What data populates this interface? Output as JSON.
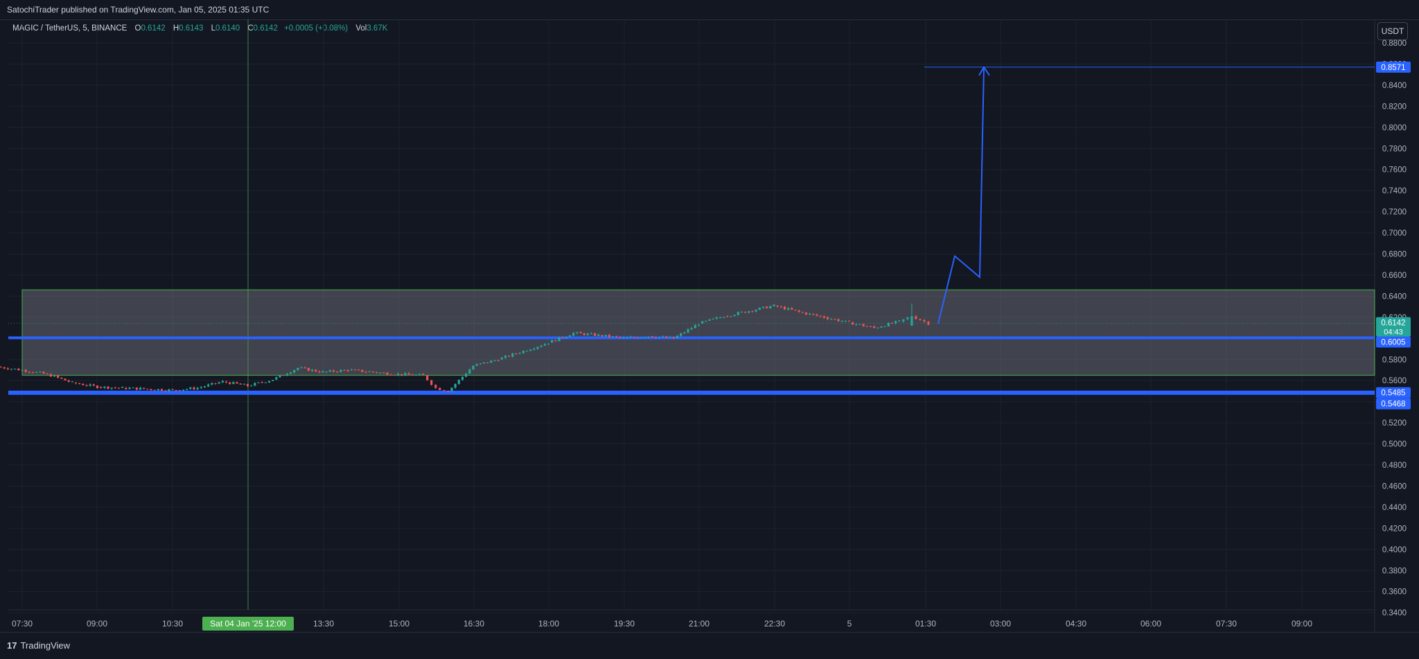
{
  "header": {
    "published_by": "SatochiTrader published on TradingView.com, Jan 05, 2025 01:35 UTC"
  },
  "legend": {
    "symbol": "MAGIC / TetherUS, 5, BINANCE",
    "open_label": "O",
    "open": "0.6142",
    "high_label": "H",
    "high": "0.6143",
    "low_label": "L",
    "low": "0.6140",
    "close_label": "C",
    "close": "0.6142",
    "change": "+0.0005 (+0.08%)",
    "vol_label": "Vol",
    "vol": "3.67K"
  },
  "currency_button": "USDT",
  "brand": {
    "name": "TradingView",
    "mark": "17"
  },
  "colors": {
    "bg": "#131722",
    "up": "#26a69a",
    "down": "#ef5350",
    "blue": "#2962ff",
    "zone": "#4caf50"
  },
  "price_axis": {
    "ticks": [
      "0.8800",
      "0.8600",
      "0.8400",
      "0.8200",
      "0.8000",
      "0.7800",
      "0.7600",
      "0.7400",
      "0.7200",
      "0.7000",
      "0.6800",
      "0.6600",
      "0.6400",
      "0.6200",
      "0.6000",
      "0.5800",
      "0.5600",
      "0.5400",
      "0.5200",
      "0.5000",
      "0.4800",
      "0.4600",
      "0.4400",
      "0.4200",
      "0.4000",
      "0.3800",
      "0.3600",
      "0.3400"
    ],
    "labels": {
      "target": "0.8571",
      "current_price": "0.6142",
      "countdown": "04:43",
      "support_upper": "0.6005",
      "support_lower_a": "0.5485",
      "support_lower_b": "0.5468"
    }
  },
  "time_axis": {
    "ticks": [
      "07:30",
      "09:00",
      "10:30",
      "13:30",
      "15:00",
      "16:30",
      "18:00",
      "19:30",
      "21:00",
      "22:30",
      "5",
      "01:30",
      "03:00",
      "04:30",
      "06:00",
      "07:30",
      "09:00"
    ],
    "crosshair_label": "Sat 04 Jan '25   12:00"
  },
  "chart_data": {
    "type": "candlestick",
    "symbol": "MAGIC/USDT",
    "interval": "5",
    "ylim": [
      0.34,
      0.88
    ],
    "x_range": [
      "Jan 04 07:00",
      "Jan 05 10:30"
    ],
    "close_series_approx": [
      [
        "07:00",
        0.573
      ],
      [
        "07:30",
        0.57
      ],
      [
        "08:00",
        0.566
      ],
      [
        "08:30",
        0.558
      ],
      [
        "09:00",
        0.554
      ],
      [
        "09:30",
        0.553
      ],
      [
        "10:00",
        0.552
      ],
      [
        "10:30",
        0.551
      ],
      [
        "11:00",
        0.553
      ],
      [
        "11:30",
        0.559
      ],
      [
        "12:00",
        0.555
      ],
      [
        "12:30",
        0.561
      ],
      [
        "13:00",
        0.572
      ],
      [
        "13:30",
        0.568
      ],
      [
        "14:00",
        0.57
      ],
      [
        "14:30",
        0.568
      ],
      [
        "15:00",
        0.566
      ],
      [
        "15:30",
        0.565
      ],
      [
        "15:45",
        0.553
      ],
      [
        "16:00",
        0.55
      ],
      [
        "16:30",
        0.574
      ],
      [
        "17:00",
        0.58
      ],
      [
        "17:30",
        0.588
      ],
      [
        "18:00",
        0.596
      ],
      [
        "18:30",
        0.605
      ],
      [
        "19:00",
        0.603
      ],
      [
        "19:30",
        0.6
      ],
      [
        "20:00",
        0.602
      ],
      [
        "20:30",
        0.6
      ],
      [
        "21:00",
        0.614
      ],
      [
        "21:30",
        0.621
      ],
      [
        "22:00",
        0.626
      ],
      [
        "22:30",
        0.631
      ],
      [
        "23:00",
        0.625
      ],
      [
        "23:30",
        0.62
      ],
      [
        "00:00",
        0.615
      ],
      [
        "00:30",
        0.61
      ],
      [
        "01:00",
        0.616
      ],
      [
        "01:15",
        0.621
      ],
      [
        "01:35",
        0.6142
      ]
    ],
    "annotations": {
      "zone": {
        "top": 0.646,
        "bottom": 0.565,
        "color": "#4caf50"
      },
      "support_lines": [
        0.6005,
        0.5485
      ],
      "target_line": 0.8571,
      "projection_path": [
        [
          "01:35",
          0.614
        ],
        [
          "01:50",
          0.678
        ],
        [
          "02:20",
          0.658
        ],
        [
          "02:40",
          0.8571
        ]
      ]
    },
    "last": {
      "open": 0.6142,
      "high": 0.6143,
      "low": 0.614,
      "close": 0.6142,
      "change": 0.0005,
      "change_pct": 0.08,
      "volume": "3.67K"
    }
  }
}
